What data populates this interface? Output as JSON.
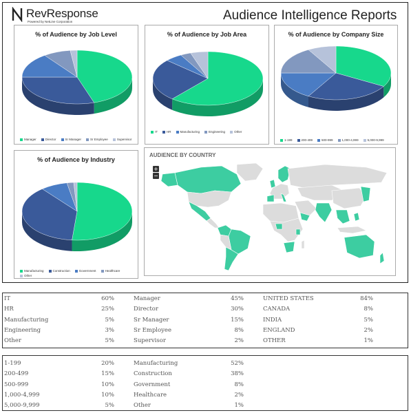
{
  "header": {
    "logo_text": "RevResponse",
    "logo_sub": "Powered by NetLine Corporation",
    "title": "Audience Intelligence Reports"
  },
  "colors": {
    "green": "#17d88c",
    "navy": "#3a5a9a",
    "blue": "#4a7cc4",
    "slate": "#8298bf",
    "lavender": "#b6c2da",
    "map_land": "#dcdcdc",
    "map_highlight": "#3dcda1"
  },
  "charts": {
    "job_level": {
      "title": "% of Audience by Job Level",
      "legend": [
        "Manager",
        "Director",
        "Sr Manager",
        "Sr Employee",
        "Supervisor"
      ]
    },
    "job_area": {
      "title": "% of Audience by Job Area",
      "legend": [
        "IT",
        "HR",
        "Manufacturing",
        "Engineering",
        "Other"
      ]
    },
    "company_size": {
      "title": "% of Audience by Company Size",
      "legend": [
        "1-199",
        "200-499",
        "500-999",
        "1,000-4,999",
        "5,000-9,999"
      ]
    },
    "industry": {
      "title": "% of Audience by Industry",
      "legend": [
        "Manufacturing",
        "Construction",
        "Government",
        "Healthcare",
        "Other"
      ]
    }
  },
  "chart_data": [
    {
      "type": "pie",
      "title": "% of Audience by Job Level",
      "categories": [
        "Manager",
        "Director",
        "Sr Manager",
        "Sr Employee",
        "Supervisor"
      ],
      "values": [
        45,
        30,
        15,
        8,
        2
      ]
    },
    {
      "type": "pie",
      "title": "% of Audience by Job Area",
      "categories": [
        "IT",
        "HR",
        "Manufacturing",
        "Engineering",
        "Other"
      ],
      "values": [
        60,
        25,
        5,
        3,
        5
      ]
    },
    {
      "type": "pie",
      "title": "% of Audience by Company Size",
      "categories": [
        "1-199",
        "200-499",
        "500-999",
        "1,000-4,999",
        "5,000-9,999"
      ],
      "values": [
        20,
        15,
        10,
        10,
        5
      ]
    },
    {
      "type": "pie",
      "title": "% of Audience by Industry",
      "categories": [
        "Manufacturing",
        "Construction",
        "Government",
        "Healthcare",
        "Other"
      ],
      "values": [
        52,
        38,
        8,
        2,
        1
      ]
    }
  ],
  "map": {
    "title": "AUDIENCE BY COUNTRY",
    "zoom_in": "+",
    "zoom_out": "−"
  },
  "table1": {
    "job_area": [
      {
        "label": "IT",
        "value": "60%"
      },
      {
        "label": "HR",
        "value": "25%"
      },
      {
        "label": "Manufacturing",
        "value": "5%"
      },
      {
        "label": "Engineering",
        "value": "3%"
      },
      {
        "label": "Other",
        "value": "5%"
      }
    ],
    "job_level": [
      {
        "label": "Manager",
        "value": "45%"
      },
      {
        "label": "Director",
        "value": "30%"
      },
      {
        "label": "Sr Manager",
        "value": "15%"
      },
      {
        "label": "Sr Employee",
        "value": "8%"
      },
      {
        "label": "Supervisor",
        "value": "2%"
      }
    ],
    "country": [
      {
        "label": "UNITED STATES",
        "value": "84%"
      },
      {
        "label": "CANADA",
        "value": "8%"
      },
      {
        "label": "INDIA",
        "value": "5%"
      },
      {
        "label": "ENGLAND",
        "value": "2%"
      },
      {
        "label": "OTHER",
        "value": "1%"
      }
    ]
  },
  "table2": {
    "company_size": [
      {
        "label": "1-199",
        "value": "20%"
      },
      {
        "label": "200-499",
        "value": "15%"
      },
      {
        "label": "500-999",
        "value": "10%"
      },
      {
        "label": "1,000-4,999",
        "value": "10%"
      },
      {
        "label": "5,000-9,999",
        "value": "5%"
      }
    ],
    "industry": [
      {
        "label": "Manufacturing",
        "value": "52%"
      },
      {
        "label": "Construction",
        "value": "38%"
      },
      {
        "label": "Government",
        "value": "8%"
      },
      {
        "label": "Healthcare",
        "value": "2%"
      },
      {
        "label": "Other",
        "value": "1%"
      }
    ]
  }
}
